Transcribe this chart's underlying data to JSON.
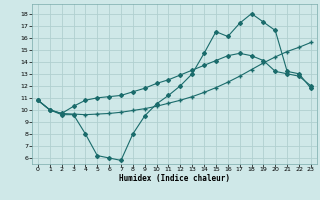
{
  "xlabel": "Humidex (Indice chaleur)",
  "bg_color": "#cfe8e8",
  "grid_color": "#b0d0d0",
  "line_color": "#1a6b6b",
  "x_ticks": [
    0,
    1,
    2,
    3,
    4,
    5,
    6,
    7,
    8,
    9,
    10,
    11,
    12,
    13,
    14,
    15,
    16,
    17,
    18,
    19,
    20,
    21,
    22,
    23
  ],
  "ylim": [
    5.5,
    18.8
  ],
  "xlim": [
    -0.5,
    23.5
  ],
  "yticks": [
    6,
    7,
    8,
    9,
    10,
    11,
    12,
    13,
    14,
    15,
    16,
    17,
    18
  ],
  "series1_x": [
    0,
    1,
    2,
    3,
    4,
    5,
    6,
    7,
    8,
    9,
    10,
    11,
    12,
    13,
    14,
    15,
    16,
    17,
    18,
    19,
    20,
    21,
    22,
    23
  ],
  "series1_y": [
    10.8,
    10.0,
    9.6,
    9.6,
    8.0,
    6.2,
    6.0,
    5.8,
    8.0,
    9.5,
    10.5,
    11.2,
    12.0,
    13.0,
    14.7,
    16.5,
    16.1,
    17.2,
    18.0,
    17.3,
    16.6,
    13.2,
    13.0,
    11.8
  ],
  "series2_x": [
    0,
    1,
    2,
    3,
    4,
    5,
    6,
    7,
    8,
    9,
    10,
    11,
    12,
    13,
    14,
    15,
    16,
    17,
    18,
    19,
    20,
    21,
    22,
    23
  ],
  "series2_y": [
    10.8,
    10.0,
    9.7,
    9.65,
    9.6,
    9.65,
    9.7,
    9.8,
    9.95,
    10.1,
    10.3,
    10.55,
    10.8,
    11.1,
    11.45,
    11.85,
    12.3,
    12.8,
    13.35,
    13.9,
    14.4,
    14.85,
    15.2,
    15.6
  ],
  "series3_x": [
    0,
    1,
    2,
    3,
    4,
    5,
    6,
    7,
    8,
    9,
    10,
    11,
    12,
    13,
    14,
    15,
    16,
    17,
    18,
    19,
    20,
    21,
    22,
    23
  ],
  "series3_y": [
    10.8,
    10.0,
    9.7,
    10.3,
    10.8,
    11.0,
    11.1,
    11.2,
    11.5,
    11.8,
    12.2,
    12.5,
    12.9,
    13.3,
    13.7,
    14.1,
    14.5,
    14.7,
    14.5,
    14.1,
    13.2,
    13.0,
    12.8,
    12.0
  ]
}
